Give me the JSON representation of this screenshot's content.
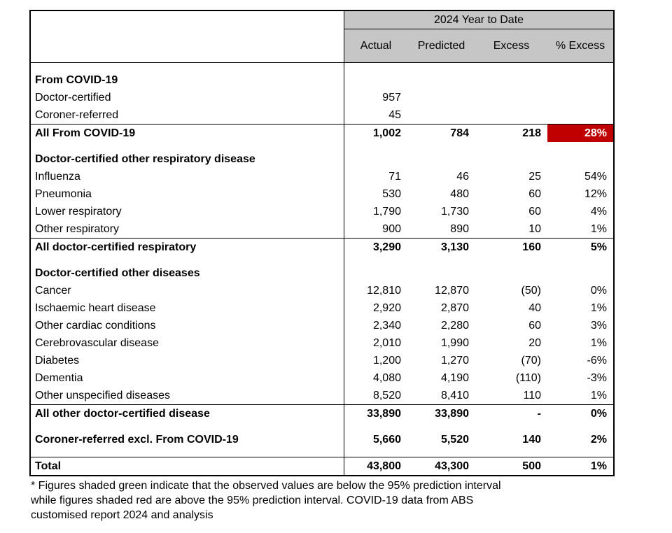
{
  "colors": {
    "header_bg": "#c6c6c6",
    "highlight_red": "#c00000",
    "highlight_red_text": "#ffffff"
  },
  "table": {
    "group_title": "2024 Year to Date",
    "columns": [
      "Actual",
      "Predicted",
      "Excess",
      "% Excess"
    ],
    "rows": [
      {
        "type": "spacer"
      },
      {
        "type": "section",
        "label": "From COVID-19"
      },
      {
        "type": "data",
        "label": "Doctor-certified",
        "actual": "957",
        "predicted": "",
        "excess": "",
        "pct": ""
      },
      {
        "type": "data",
        "label": "Coroner-referred",
        "actual": "45",
        "predicted": "",
        "excess": "",
        "pct": ""
      },
      {
        "type": "total",
        "label": "All From COVID-19",
        "actual": "1,002",
        "predicted": "784",
        "excess": "218",
        "pct": "28%",
        "pct_highlight": "red",
        "border_top": true
      },
      {
        "type": "spacer"
      },
      {
        "type": "section",
        "label": "Doctor-certified other respiratory disease"
      },
      {
        "type": "data",
        "label": "Influenza",
        "actual": "71",
        "predicted": "46",
        "excess": "25",
        "pct": "54%"
      },
      {
        "type": "data",
        "label": "Pneumonia",
        "actual": "530",
        "predicted": "480",
        "excess": "60",
        "pct": "12%"
      },
      {
        "type": "data",
        "label": "Lower respiratory",
        "actual": "1,790",
        "predicted": "1,730",
        "excess": "60",
        "pct": "4%"
      },
      {
        "type": "data",
        "label": "Other respiratory",
        "actual": "900",
        "predicted": "890",
        "excess": "10",
        "pct": "1%"
      },
      {
        "type": "total",
        "label": "All doctor-certified respiratory",
        "actual": "3,290",
        "predicted": "3,130",
        "excess": "160",
        "pct": "5%",
        "border_top": true
      },
      {
        "type": "spacer"
      },
      {
        "type": "section",
        "label": "Doctor-certified other diseases"
      },
      {
        "type": "data",
        "label": "Cancer",
        "actual": "12,810",
        "predicted": "12,870",
        "excess": "(50)",
        "pct": "0%"
      },
      {
        "type": "data",
        "label": "Ischaemic heart disease",
        "actual": "2,920",
        "predicted": "2,870",
        "excess": "40",
        "pct": "1%"
      },
      {
        "type": "data",
        "label": "Other cardiac conditions",
        "actual": "2,340",
        "predicted": "2,280",
        "excess": "60",
        "pct": "3%"
      },
      {
        "type": "data",
        "label": "Cerebrovascular disease",
        "actual": "2,010",
        "predicted": "1,990",
        "excess": "20",
        "pct": "1%"
      },
      {
        "type": "data",
        "label": "Diabetes",
        "actual": "1,200",
        "predicted": "1,270",
        "excess": "(70)",
        "pct": "-6%"
      },
      {
        "type": "data",
        "label": "Dementia",
        "actual": "4,080",
        "predicted": "4,190",
        "excess": "(110)",
        "pct": "-3%"
      },
      {
        "type": "data",
        "label": "Other unspecified diseases",
        "actual": "8,520",
        "predicted": "8,410",
        "excess": "110",
        "pct": "1%"
      },
      {
        "type": "total",
        "label": "All other doctor-certified disease",
        "actual": "33,890",
        "predicted": "33,890",
        "excess": "-",
        "pct": "0%",
        "border_top": true
      },
      {
        "type": "spacer"
      },
      {
        "type": "total",
        "label": "Coroner-referred excl. From COVID-19",
        "actual": "5,660",
        "predicted": "5,520",
        "excess": "140",
        "pct": "2%"
      },
      {
        "type": "spacer"
      },
      {
        "type": "total",
        "label": "Total",
        "actual": "43,800",
        "predicted": "43,300",
        "excess": "500",
        "pct": "1%",
        "border_top": true
      }
    ]
  },
  "footnote_lines": [
    "* Figures shaded green indicate that the observed values are below the 95% prediction interval",
    "while figures shaded red are above the 95% prediction interval.  COVID-19 data from ABS",
    "customised report 2024 and analysis"
  ]
}
